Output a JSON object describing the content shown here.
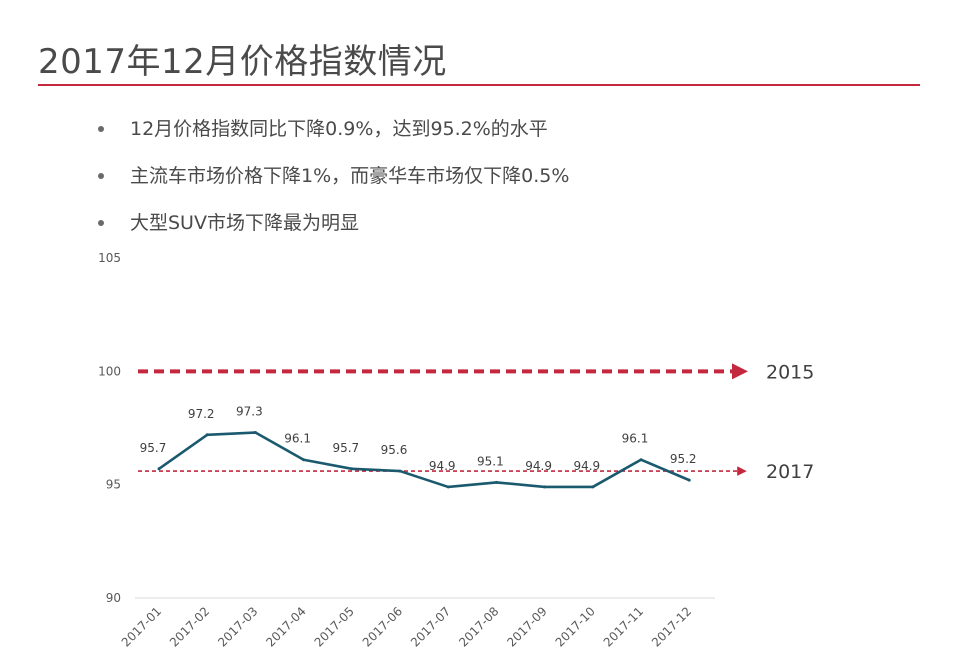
{
  "slide": {
    "title": "2017年12月价格指数情况",
    "bullets": [
      "12月价格指数同比下降0.9%，达到95.2%的水平",
      "主流车市场价格下降1%，而豪华车市场仅下降0.5%",
      "大型SUV市场下降最为明显"
    ]
  },
  "chart_data": {
    "type": "line",
    "categories": [
      "2017-01",
      "2017-02",
      "2017-03",
      "2017-04",
      "2017-05",
      "2017-06",
      "2017-07",
      "2017-08",
      "2017-09",
      "2017-10",
      "2017-11",
      "2017-12"
    ],
    "series": [
      {
        "values": [
          95.7,
          97.2,
          97.3,
          96.1,
          95.7,
          95.6,
          94.9,
          95.1,
          94.9,
          94.9,
          96.1,
          95.2
        ],
        "color": "#1b5a6e"
      }
    ],
    "data_labels": [
      "95.7",
      "97.2",
      "97.3",
      "96.1",
      "95.7",
      "95.6",
      "94.9",
      "95.1",
      "94.9",
      "94.9",
      "96.1",
      "95.2"
    ],
    "ylim": [
      90,
      105
    ],
    "yticks": [
      "90",
      "95",
      "100",
      "105"
    ],
    "reference_lines": [
      {
        "label": "2015",
        "value": 100,
        "color": "#c4283f",
        "style": "thick-dashed-arrow"
      },
      {
        "label": "2017",
        "value": 95.6,
        "color": "#c4283f",
        "style": "thin-dashed-arrow"
      }
    ],
    "grid": false,
    "legend": "none"
  }
}
